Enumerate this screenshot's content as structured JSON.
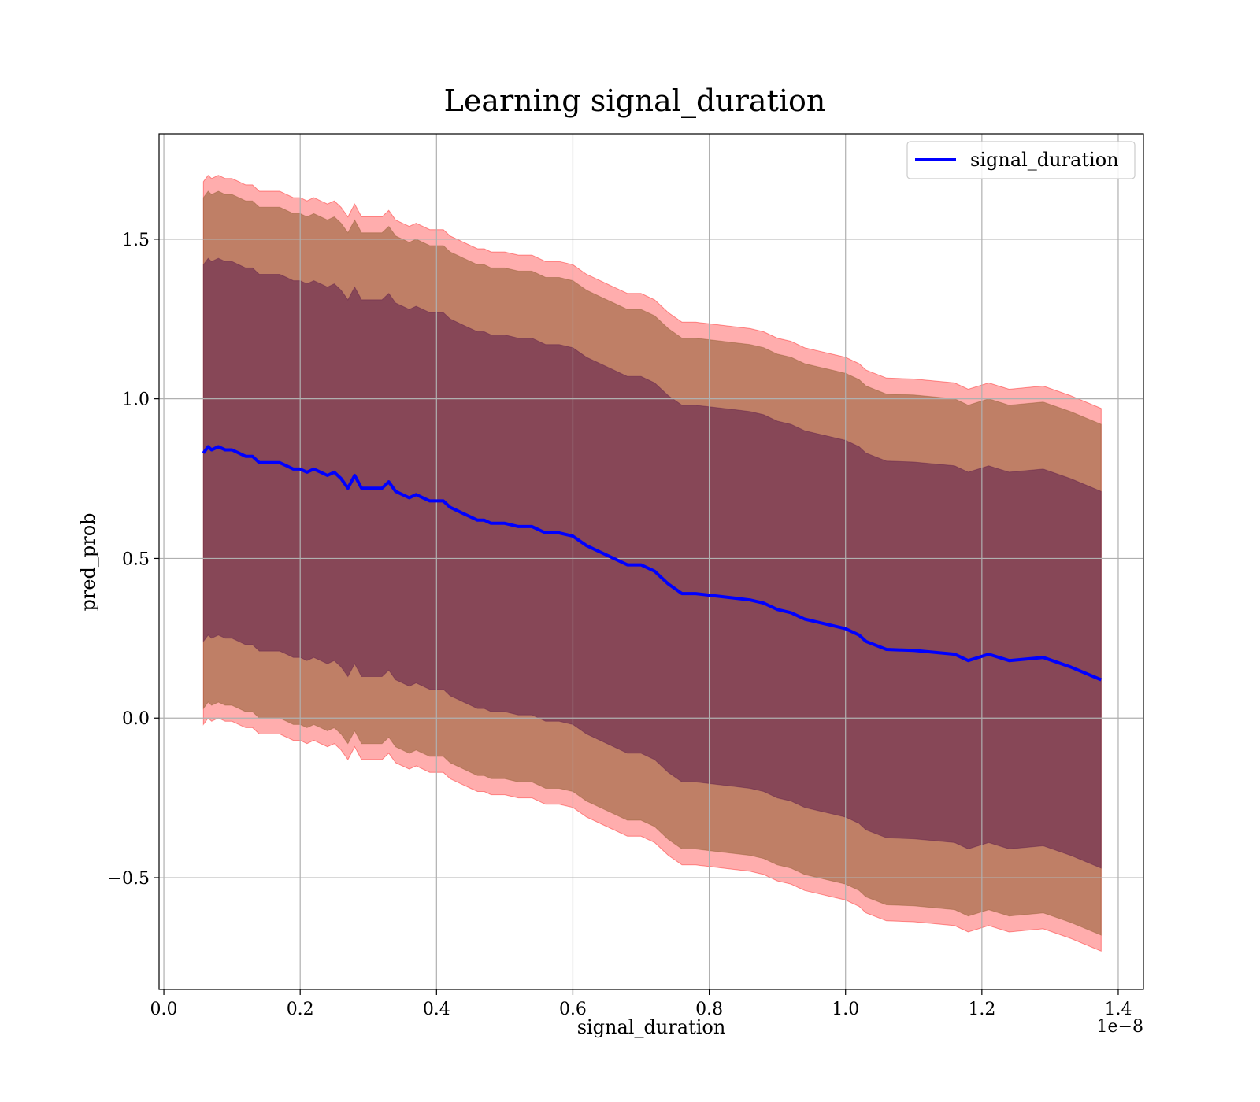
{
  "chart_data": {
    "type": "line",
    "title": "Learning signal_duration",
    "xlabel": "signal_duration",
    "ylabel": "pred_prob",
    "x_offset_label": "1e−8",
    "x_scale": 1e-08,
    "xlim": [
      -0.007,
      1.437
    ],
    "ylim": [
      -0.85,
      1.83
    ],
    "x_ticks": [
      0.0,
      0.2,
      0.4,
      0.6,
      0.8,
      1.0,
      1.2,
      1.4
    ],
    "x_tick_labels": [
      "0.0",
      "0.2",
      "0.4",
      "0.6",
      "0.8",
      "1.0",
      "1.2",
      "1.4"
    ],
    "y_ticks": [
      -0.5,
      0.0,
      0.5,
      1.0,
      1.5
    ],
    "y_tick_labels": [
      "−0.5",
      "0.0",
      "0.5",
      "1.0",
      "1.5"
    ],
    "grid": true,
    "legend": {
      "position": "top-right",
      "entries": [
        "signal_duration"
      ]
    },
    "colors": {
      "line": "#0000ff",
      "band_outer": "#ff0000",
      "band_mid": "#8b5a2b",
      "band_inner": "#5a1a4a"
    },
    "band_half_widths": {
      "outer": 0.85,
      "mid": 0.8,
      "inner": 0.59
    },
    "series": [
      {
        "name": "signal_duration",
        "x": [
          0.058,
          0.065,
          0.07,
          0.08,
          0.09,
          0.1,
          0.11,
          0.12,
          0.13,
          0.14,
          0.15,
          0.16,
          0.17,
          0.18,
          0.19,
          0.2,
          0.21,
          0.22,
          0.23,
          0.24,
          0.25,
          0.26,
          0.27,
          0.28,
          0.29,
          0.3,
          0.31,
          0.32,
          0.33,
          0.34,
          0.35,
          0.36,
          0.37,
          0.38,
          0.39,
          0.4,
          0.41,
          0.42,
          0.43,
          0.44,
          0.45,
          0.46,
          0.47,
          0.48,
          0.49,
          0.5,
          0.52,
          0.54,
          0.56,
          0.58,
          0.6,
          0.62,
          0.64,
          0.66,
          0.68,
          0.7,
          0.72,
          0.74,
          0.76,
          0.78,
          0.8,
          0.82,
          0.84,
          0.86,
          0.88,
          0.9,
          0.92,
          0.94,
          0.96,
          0.98,
          1.0,
          1.02,
          1.03,
          1.06,
          1.1,
          1.16,
          1.18,
          1.21,
          1.24,
          1.29,
          1.33,
          1.375
        ],
        "y": [
          0.83,
          0.85,
          0.84,
          0.85,
          0.84,
          0.84,
          0.83,
          0.82,
          0.82,
          0.8,
          0.8,
          0.8,
          0.8,
          0.79,
          0.78,
          0.78,
          0.77,
          0.78,
          0.77,
          0.76,
          0.77,
          0.75,
          0.72,
          0.76,
          0.72,
          0.72,
          0.72,
          0.72,
          0.74,
          0.71,
          0.7,
          0.69,
          0.7,
          0.69,
          0.68,
          0.68,
          0.68,
          0.66,
          0.65,
          0.64,
          0.63,
          0.62,
          0.62,
          0.61,
          0.61,
          0.61,
          0.6,
          0.6,
          0.58,
          0.58,
          0.57,
          0.54,
          0.52,
          0.5,
          0.48,
          0.48,
          0.46,
          0.42,
          0.39,
          0.39,
          0.385,
          0.38,
          0.375,
          0.37,
          0.36,
          0.34,
          0.33,
          0.31,
          0.3,
          0.29,
          0.28,
          0.26,
          0.24,
          0.215,
          0.212,
          0.2,
          0.18,
          0.2,
          0.18,
          0.19,
          0.16,
          0.12
        ]
      }
    ]
  }
}
